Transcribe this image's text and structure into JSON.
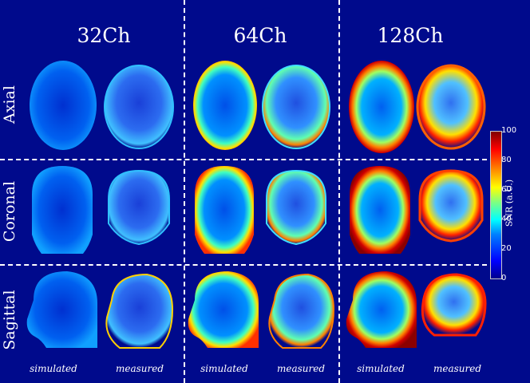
{
  "columns": [
    "32Ch",
    "64Ch",
    "128Ch"
  ],
  "rows": [
    "Axial",
    "Coronal",
    "Sagittal"
  ],
  "sub_labels": {
    "simulated": "simulated",
    "measured": "measured"
  },
  "colorbar": {
    "label": "SNR (a.U.)",
    "ticks": [
      "0",
      "20",
      "40",
      "60",
      "80",
      "100"
    ],
    "colormap": "jet"
  },
  "colors": {
    "background": "#000a8c",
    "divider": "#ffffff"
  }
}
